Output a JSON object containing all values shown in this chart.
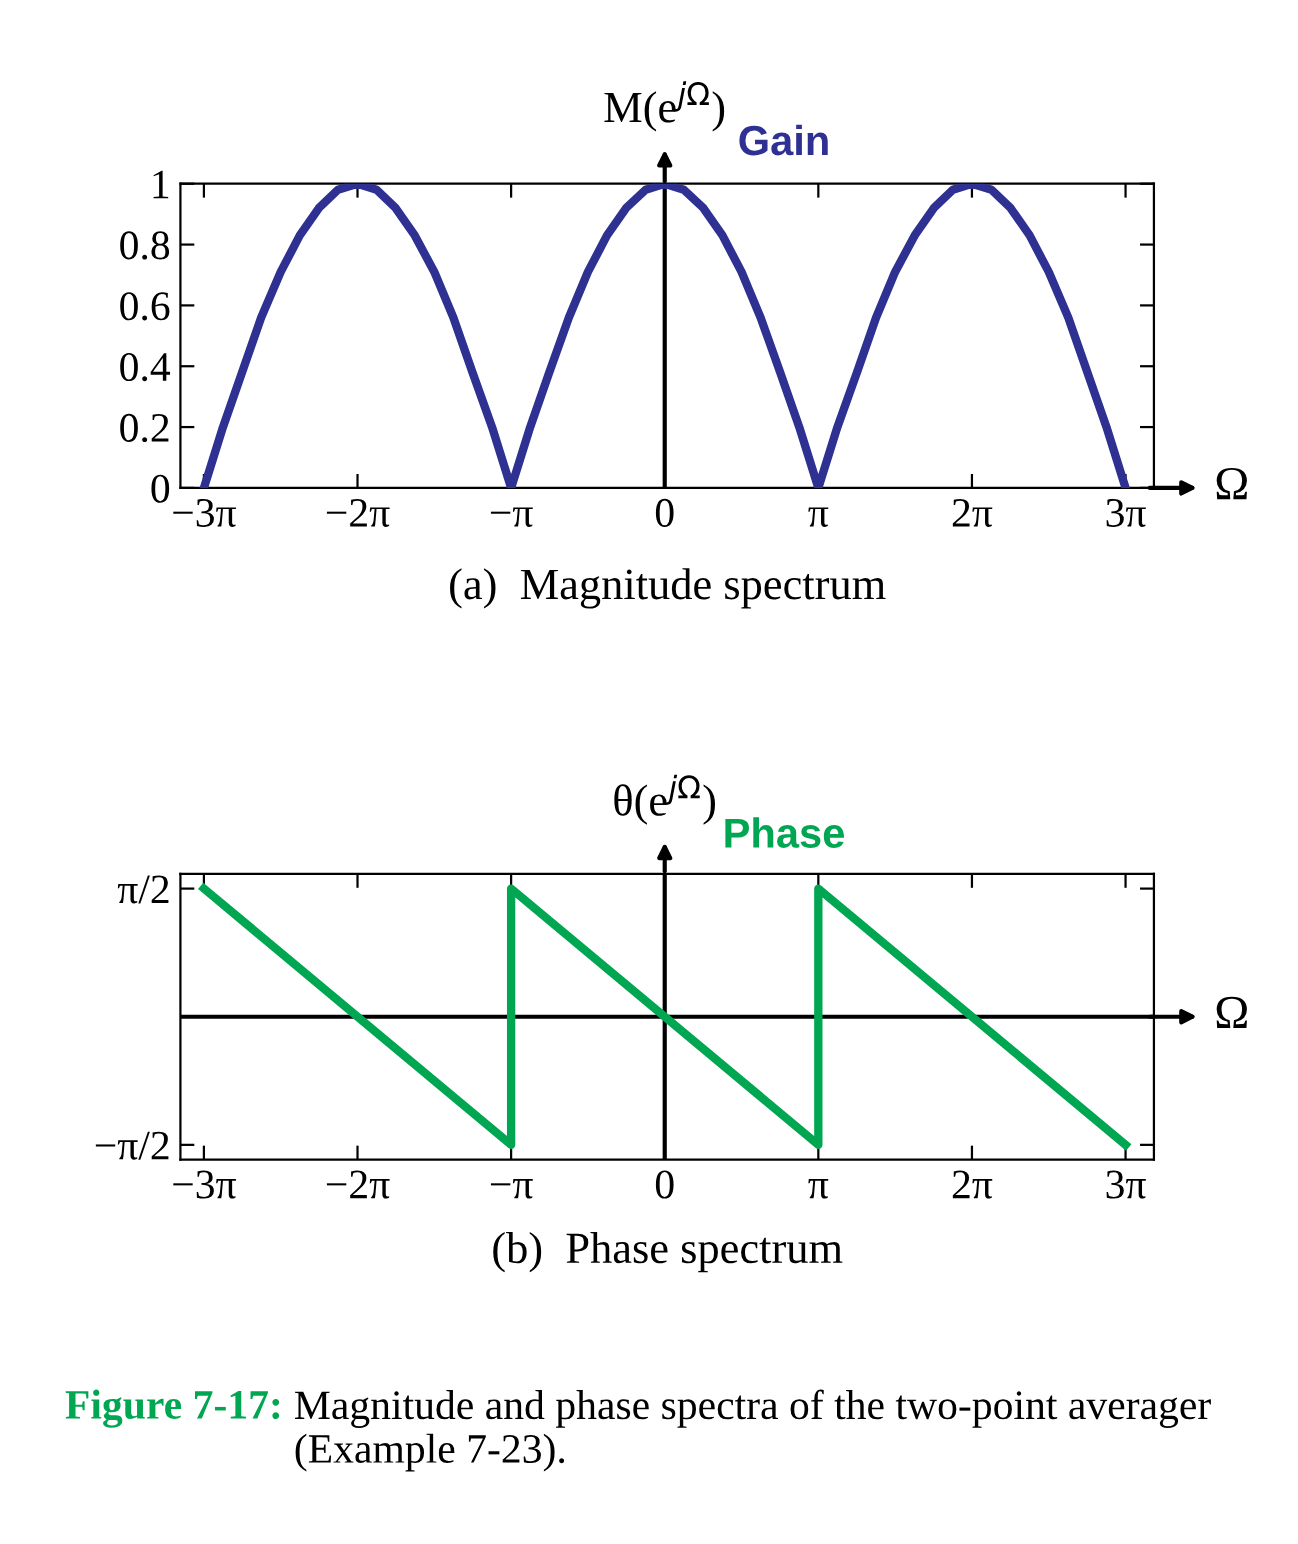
{
  "chart_data": [
    {
      "type": "line",
      "title": "(a)  Magnitude spectrum",
      "xlabel": "Ω",
      "ylabel": "M(e$^{jΩ}$)",
      "x": [
        -9.42,
        -9.03,
        -8.64,
        -8.25,
        -7.85,
        -7.46,
        -7.07,
        -6.68,
        -6.28,
        -5.89,
        -5.5,
        -5.11,
        -4.71,
        -4.32,
        -3.93,
        -3.53,
        -3.14,
        -2.75,
        -2.36,
        -1.96,
        -1.57,
        -1.18,
        -0.79,
        -0.39,
        0,
        0.39,
        0.79,
        1.18,
        1.57,
        1.96,
        2.36,
        2.75,
        3.14,
        3.53,
        3.93,
        4.32,
        4.71,
        5.11,
        5.5,
        5.89,
        6.28,
        6.68,
        7.07,
        7.46,
        7.85,
        8.25,
        8.64,
        9.03,
        9.42
      ],
      "series": [
        {
          "name": "Gain",
          "color": "#2e3192",
          "values": [
            0,
            0.2,
            0.38,
            0.56,
            0.71,
            0.83,
            0.92,
            0.98,
            1,
            0.98,
            0.92,
            0.83,
            0.71,
            0.56,
            0.38,
            0.2,
            0,
            0.2,
            0.38,
            0.56,
            0.71,
            0.83,
            0.92,
            0.98,
            1,
            0.98,
            0.92,
            0.83,
            0.71,
            0.56,
            0.38,
            0.2,
            0,
            0.2,
            0.38,
            0.56,
            0.71,
            0.83,
            0.92,
            0.98,
            1,
            0.98,
            0.92,
            0.83,
            0.71,
            0.56,
            0.38,
            0.2,
            0
          ]
        }
      ],
      "xlim": [
        -9.9,
        10.0
      ],
      "ylim": [
        0,
        1
      ],
      "xticks": [
        {
          "value": -9.42,
          "label": "−3π"
        },
        {
          "value": -6.28,
          "label": "−2π"
        },
        {
          "value": -3.14,
          "label": "−π"
        },
        0,
        {
          "value": 3.14,
          "label": "π"
        },
        {
          "value": 6.28,
          "label": "2π"
        },
        {
          "value": 9.42,
          "label": "3π"
        }
      ],
      "yticks": [
        0,
        0.2,
        0.4,
        0.6,
        0.8,
        1
      ],
      "ref_lines": [
        {
          "axis": "x",
          "value": 0,
          "color": "#000000"
        }
      ],
      "grid": false,
      "legend": false
    },
    {
      "type": "line",
      "title": "(b)  Phase spectrum",
      "xlabel": "Ω",
      "ylabel": "θ(e$^{jΩ}$)",
      "x": [
        -9.42,
        -3.14,
        -3.14,
        3.14,
        3.14,
        9.42
      ],
      "series": [
        {
          "name": "Phase",
          "color": "#00a651",
          "values": [
            1.57,
            -1.57,
            1.57,
            -1.57,
            1.57,
            -1.57
          ]
        }
      ],
      "xlim": [
        -9.9,
        10.0
      ],
      "ylim": [
        -1.75,
        1.75
      ],
      "xticks": [
        {
          "value": -9.42,
          "label": "−3π"
        },
        {
          "value": -6.28,
          "label": "−2π"
        },
        {
          "value": -3.14,
          "label": "−π"
        },
        0,
        {
          "value": 3.14,
          "label": "π"
        },
        {
          "value": 6.28,
          "label": "2π"
        },
        {
          "value": 9.42,
          "label": "3π"
        }
      ],
      "yticks": [
        {
          "value": 1.57,
          "label": "π/2"
        },
        {
          "value": -1.57,
          "label": "−π/2"
        }
      ],
      "ref_lines": [
        {
          "axis": "x",
          "value": 0,
          "color": "#000000"
        },
        {
          "axis": "y",
          "value": 0,
          "color": "#000000"
        }
      ],
      "grid": false,
      "legend": false,
      "annotations": [
        "Figure 7-17:",
        "Magnitude and phase spectra of the two-point averager (Example 7-23)."
      ]
    }
  ]
}
